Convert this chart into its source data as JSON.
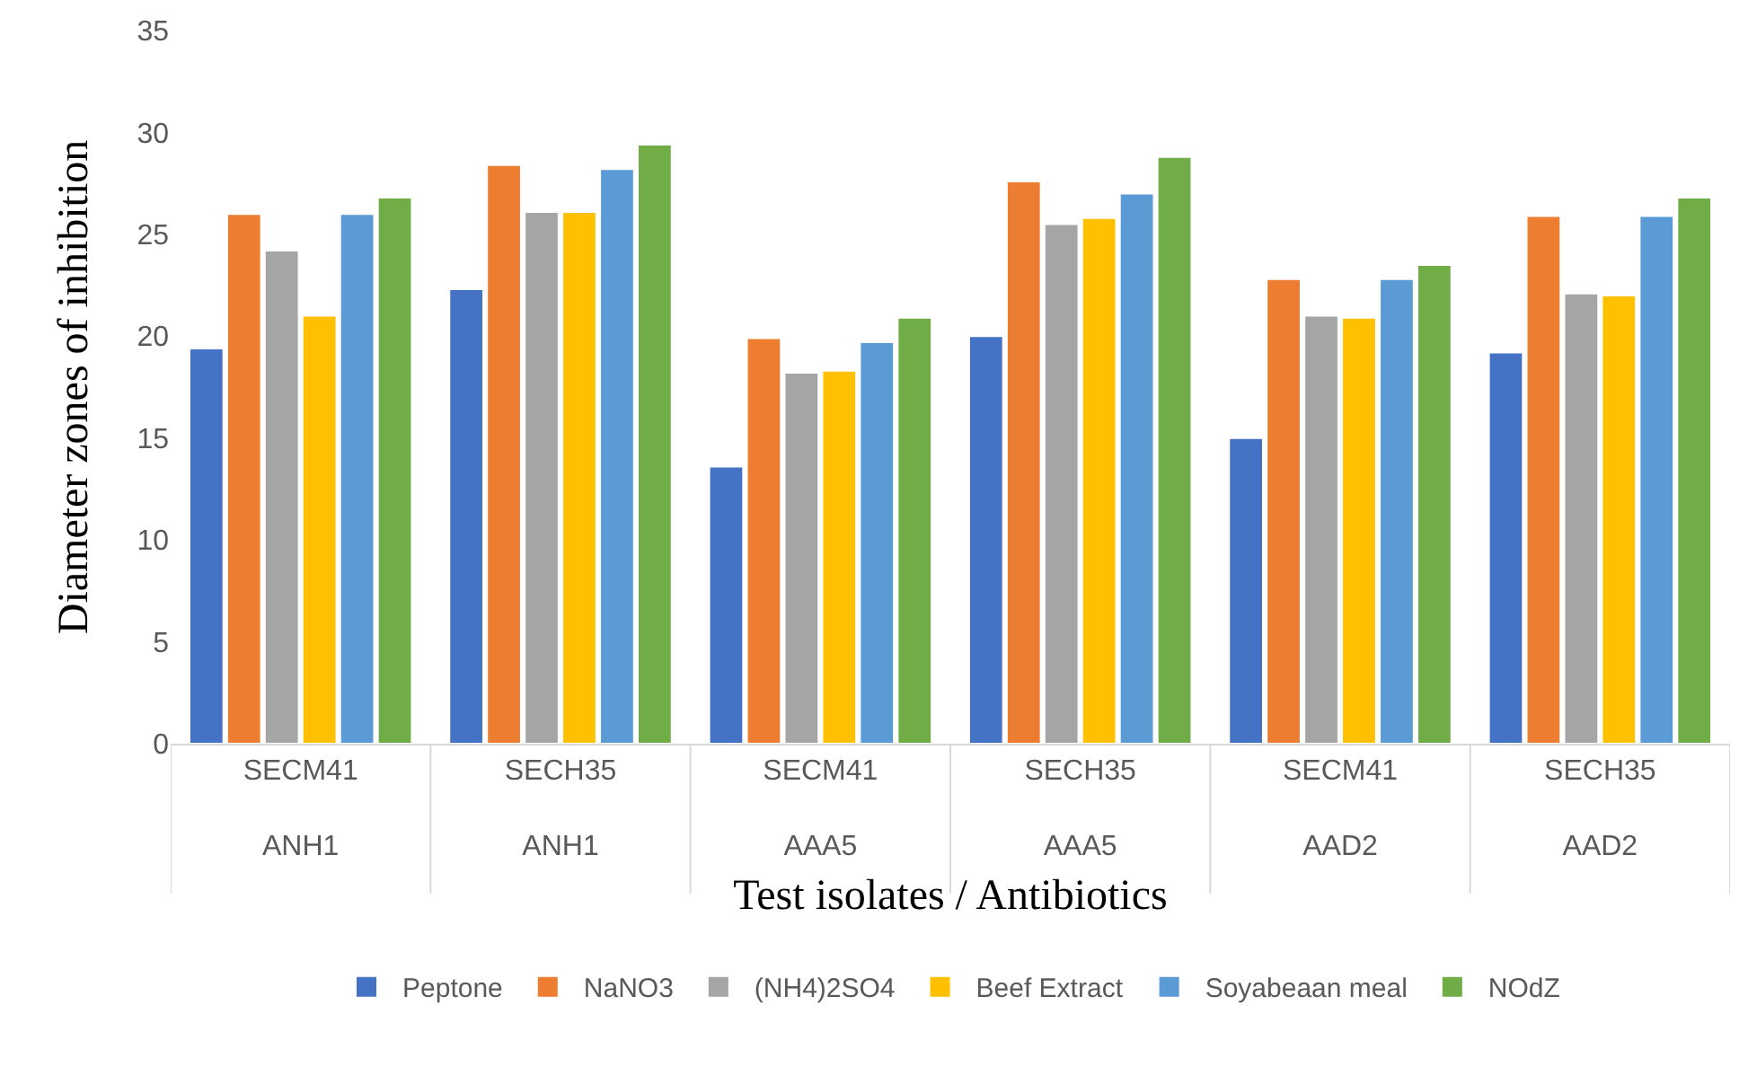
{
  "chart_data": {
    "type": "bar",
    "xlabel": "Test isolates / Antibiotics",
    "ylabel": "Diameter zones of inhibition",
    "categories": [
      "SECM41\nANH1",
      "SECH35\nANH1",
      "SECM41\nAAA5",
      "SECH35\nAAA5",
      "SECM41\nAAD2",
      "SECH35\nAAD2"
    ],
    "series": [
      {
        "name": "Peptone",
        "color": "#4472c4",
        "values": [
          19.4,
          22.3,
          13.6,
          20.0,
          15.0,
          19.2
        ]
      },
      {
        "name": "NaNO3",
        "color": "#ed7d31",
        "values": [
          26.0,
          28.4,
          19.9,
          27.6,
          22.8,
          25.9
        ]
      },
      {
        "name": "(NH4)2SO4",
        "color": "#a5a5a5",
        "values": [
          24.2,
          26.1,
          18.2,
          25.5,
          21.0,
          22.1
        ]
      },
      {
        "name": "Beef Extract",
        "color": "#ffc000",
        "values": [
          21.0,
          26.1,
          18.3,
          25.8,
          20.9,
          22.0
        ]
      },
      {
        "name": "Soyabeaan meal",
        "color": "#5b9bd5",
        "values": [
          26.0,
          28.2,
          19.7,
          27.0,
          22.8,
          25.9
        ]
      },
      {
        "name": "NOdZ",
        "color": "#70ad47",
        "values": [
          26.8,
          29.4,
          20.9,
          28.8,
          23.5,
          26.8
        ]
      }
    ],
    "ylim": [
      0,
      35
    ],
    "yticks": [
      0,
      5,
      10,
      15,
      20,
      25,
      30,
      35
    ],
    "grid": false,
    "legend": "bottom"
  }
}
